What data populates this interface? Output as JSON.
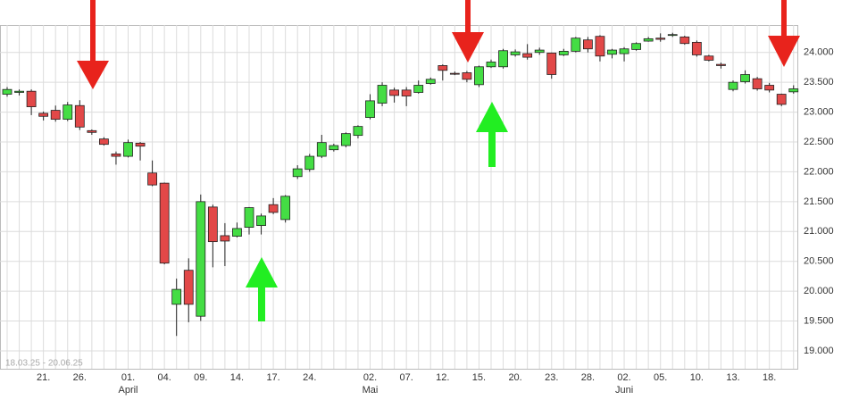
{
  "chart_data": {
    "type": "candlestick",
    "date_range": "18.03.25 - 20.06.25",
    "categories": [
      null,
      null,
      null,
      "21.",
      null,
      null,
      "26.",
      null,
      null,
      null,
      "01.",
      null,
      null,
      "04.",
      null,
      null,
      "09.",
      null,
      null,
      "14.",
      null,
      null,
      "17.",
      null,
      null,
      "24.",
      null,
      null,
      null,
      null,
      "02.",
      null,
      null,
      "07.",
      null,
      null,
      "12.",
      null,
      null,
      "15.",
      null,
      null,
      "20.",
      null,
      null,
      "23.",
      null,
      null,
      "28.",
      null,
      null,
      "02.",
      null,
      null,
      "05.",
      null,
      null,
      "10.",
      null,
      null,
      "13.",
      null,
      null,
      "18.",
      null,
      null
    ],
    "month_labels": [
      null,
      null,
      null,
      null,
      null,
      null,
      null,
      null,
      null,
      null,
      "April",
      null,
      null,
      null,
      null,
      null,
      null,
      null,
      null,
      null,
      null,
      null,
      null,
      null,
      null,
      null,
      null,
      null,
      null,
      null,
      "Mai",
      null,
      null,
      null,
      null,
      null,
      null,
      null,
      null,
      null,
      null,
      null,
      null,
      null,
      null,
      null,
      null,
      null,
      null,
      null,
      null,
      "Juni",
      null,
      null,
      null,
      null,
      null,
      null,
      null,
      null,
      null,
      null,
      null,
      null,
      null,
      null
    ],
    "open": [
      23300,
      23330,
      23350,
      22980,
      23030,
      22880,
      23110,
      22690,
      22550,
      22300,
      22260,
      22480,
      21980,
      21810,
      19780,
      20350,
      19580,
      21410,
      20930,
      20920,
      21070,
      21100,
      21450,
      21200,
      21920,
      22040,
      22260,
      22370,
      22440,
      22610,
      22910,
      23150,
      23370,
      23370,
      23330,
      23480,
      23780,
      23650,
      23660,
      23460,
      23760,
      23760,
      23960,
      23980,
      24000,
      23990,
      23960,
      24020,
      24210,
      24270,
      23970,
      23980,
      24050,
      24190,
      24240,
      24290,
      24260,
      24170,
      23940,
      23800,
      23380,
      23510,
      23560,
      23450,
      23300,
      23340
    ],
    "high": [
      23420,
      23380,
      23380,
      23010,
      23110,
      23170,
      23200,
      22710,
      22580,
      22340,
      22540,
      22500,
      22190,
      21820,
      20210,
      20550,
      21620,
      21450,
      21140,
      21150,
      21410,
      21300,
      21560,
      21610,
      22110,
      22300,
      22620,
      22470,
      22660,
      22780,
      23300,
      23500,
      23410,
      23420,
      23530,
      23580,
      23800,
      23680,
      23690,
      23780,
      23880,
      24060,
      24050,
      24140,
      24080,
      24000,
      24060,
      24260,
      24260,
      24290,
      24060,
      24090,
      24170,
      24260,
      24320,
      24330,
      24280,
      24200,
      23960,
      23830,
      23530,
      23700,
      23590,
      23490,
      23310,
      23450
    ],
    "low": [
      23260,
      23280,
      22950,
      22860,
      22840,
      22850,
      22700,
      22620,
      22440,
      22120,
      22240,
      22190,
      21760,
      20450,
      19250,
      19480,
      19500,
      20400,
      20420,
      20900,
      20950,
      20950,
      21290,
      21150,
      21880,
      22000,
      22230,
      22340,
      22410,
      22560,
      22880,
      23100,
      23160,
      23100,
      23310,
      23460,
      23530,
      23620,
      23500,
      23420,
      23740,
      23730,
      23930,
      23880,
      23960,
      23560,
      23940,
      24000,
      24000,
      23850,
      23900,
      23850,
      24030,
      24180,
      24180,
      24260,
      24130,
      23930,
      23850,
      23730,
      23350,
      23480,
      23360,
      23330,
      23100,
      23310
    ],
    "close": [
      23380,
      23350,
      23090,
      22930,
      22880,
      23120,
      22750,
      22660,
      22460,
      22260,
      22490,
      22430,
      21780,
      20470,
      20030,
      19780,
      21500,
      20830,
      20840,
      21050,
      21400,
      21260,
      21320,
      21590,
      22050,
      22260,
      22490,
      22440,
      22640,
      22760,
      23190,
      23450,
      23280,
      23270,
      23450,
      23550,
      23700,
      23640,
      23550,
      23760,
      23840,
      24030,
      24010,
      23920,
      24040,
      23630,
      24020,
      24240,
      24060,
      23940,
      24040,
      24060,
      24150,
      24230,
      24220,
      24300,
      24150,
      23960,
      23870,
      23780,
      23500,
      23630,
      23390,
      23370,
      23130,
      23390
    ],
    "up_color": "#44dd44",
    "down_color": "#e24848",
    "ylim": [
      18700,
      24460
    ],
    "yticks": [
      {
        "value": 19000,
        "label": "19.000"
      },
      {
        "value": 19500,
        "label": "19.500"
      },
      {
        "value": 20000,
        "label": "20.000"
      },
      {
        "value": 20500,
        "label": "20.500"
      },
      {
        "value": 21000,
        "label": "21.000"
      },
      {
        "value": 21500,
        "label": "21.500"
      },
      {
        "value": 22000,
        "label": "22.000"
      },
      {
        "value": 22500,
        "label": "22.500"
      },
      {
        "value": 23000,
        "label": "23.000"
      },
      {
        "value": 23500,
        "label": "23.500"
      },
      {
        "value": 24000,
        "label": "24.000"
      }
    ],
    "grid": true
  }
}
